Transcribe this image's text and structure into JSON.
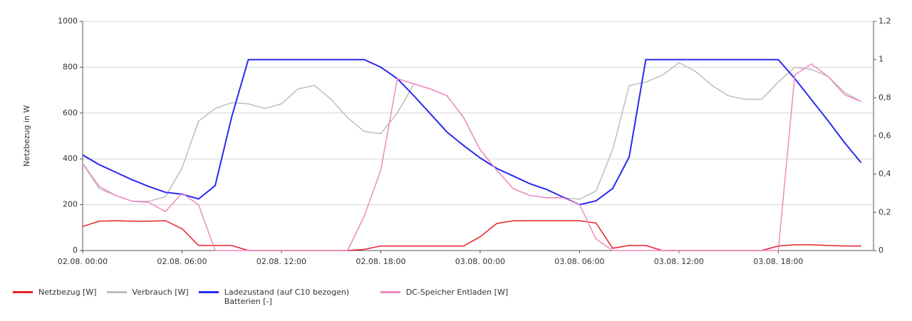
{
  "chart_data": {
    "type": "line",
    "ylabel": "Netzbezug in W",
    "x": [
      "02.08. 00:00",
      "02.08. 01:00",
      "02.08. 02:00",
      "02.08. 03:00",
      "02.08. 04:00",
      "02.08. 05:00",
      "02.08. 06:00",
      "02.08. 07:00",
      "02.08. 08:00",
      "02.08. 09:00",
      "02.08. 10:00",
      "02.08. 11:00",
      "02.08. 12:00",
      "02.08. 13:00",
      "02.08. 14:00",
      "02.08. 15:00",
      "02.08. 16:00",
      "02.08. 17:00",
      "02.08. 18:00",
      "02.08. 19:00",
      "02.08. 20:00",
      "02.08. 21:00",
      "02.08. 22:00",
      "02.08. 23:00",
      "03.08. 00:00",
      "03.08. 01:00",
      "03.08. 02:00",
      "03.08. 03:00",
      "03.08. 04:00",
      "03.08. 05:00",
      "03.08. 06:00",
      "03.08. 07:00",
      "03.08. 08:00",
      "03.08. 09:00",
      "03.08. 10:00",
      "03.08. 11:00",
      "03.08. 12:00",
      "03.08. 13:00",
      "03.08. 14:00",
      "03.08. 15:00",
      "03.08. 16:00",
      "03.08. 17:00",
      "03.08. 18:00",
      "03.08. 19:00",
      "03.08. 20:00",
      "03.08. 21:00",
      "03.08. 22:00",
      "03.08. 23:00"
    ],
    "series": [
      {
        "name": "Netzbezug  [W]",
        "color": "#e8202a",
        "values": [
          105,
          128,
          130,
          128,
          128,
          130,
          95,
          22,
          22,
          22,
          0,
          0,
          0,
          0,
          0,
          0,
          0,
          5,
          20,
          20,
          20,
          20,
          20,
          20,
          60,
          118,
          130,
          130,
          130,
          130,
          130,
          120,
          10,
          22,
          22,
          0,
          0,
          0,
          0,
          0,
          0,
          0,
          20,
          25,
          25,
          22,
          20,
          20
        ]
      },
      {
        "name": "Verbrauch  [W]",
        "color": "#bdbdbd",
        "values": [
          380,
          270,
          240,
          215,
          215,
          235,
          360,
          565,
          620,
          645,
          640,
          620,
          640,
          705,
          720,
          660,
          580,
          520,
          510,
          600,
          727,
          705,
          675,
          580,
          440,
          350,
          270,
          240,
          230,
          230,
          224,
          260,
          440,
          720,
          735,
          765,
          820,
          782,
          720,
          675,
          660,
          660,
          735,
          800,
          790,
          760,
          690,
          650
        ]
      },
      {
        "name": "Ladezustand (auf C10 bezogen) Batterien  [-]",
        "color": "#2a2af0",
        "axis": "y2",
        "values": [
          0.5,
          0.45,
          0.41,
          0.37,
          0.335,
          0.305,
          0.295,
          0.27,
          0.34,
          0.7,
          1,
          1,
          1,
          1,
          1,
          1,
          1,
          1,
          0.96,
          0.9,
          0.81,
          0.715,
          0.62,
          0.55,
          0.485,
          0.43,
          0.39,
          0.35,
          0.32,
          0.28,
          0.24,
          0.26,
          0.325,
          0.49,
          1,
          1,
          1,
          1,
          1,
          1,
          1,
          1,
          1,
          0.9,
          0.79,
          0.68,
          0.565,
          0.46
        ]
      },
      {
        "name": "DC-Speicher Entladen  [W]",
        "color": "#f088c4",
        "values": [
          380,
          280,
          240,
          215,
          210,
          170,
          250,
          200,
          0,
          0,
          0,
          0,
          0,
          0,
          0,
          0,
          0,
          150,
          350,
          750,
          727,
          705,
          675,
          580,
          440,
          350,
          270,
          240,
          230,
          230,
          200,
          50,
          0,
          0,
          0,
          0,
          0,
          0,
          0,
          0,
          0,
          0,
          0,
          767,
          814,
          760,
          680,
          650
        ]
      }
    ],
    "xlim": [
      "02.08. 00:00",
      "03.08. 23:45"
    ],
    "xticks": [
      "02.08. 00:00",
      "02.08. 06:00",
      "02.08. 12:00",
      "02.08. 18:00",
      "03.08. 00:00",
      "03.08. 06:00",
      "03.08. 12:00",
      "03.08. 18:00"
    ],
    "ylim": [
      0,
      1000
    ],
    "yticks": [
      0,
      200,
      400,
      600,
      800,
      1000
    ],
    "y2lim": [
      0,
      1.2
    ],
    "y2ticks": [
      0,
      {
        "value": 0.2,
        "label": "0,2"
      },
      {
        "value": 0.4,
        "label": "0,4"
      },
      {
        "value": 0.6,
        "label": "0,6"
      },
      {
        "value": 0.8,
        "label": "0,8"
      },
      1,
      {
        "value": 1.2,
        "label": "1,2"
      }
    ],
    "grid": true
  }
}
